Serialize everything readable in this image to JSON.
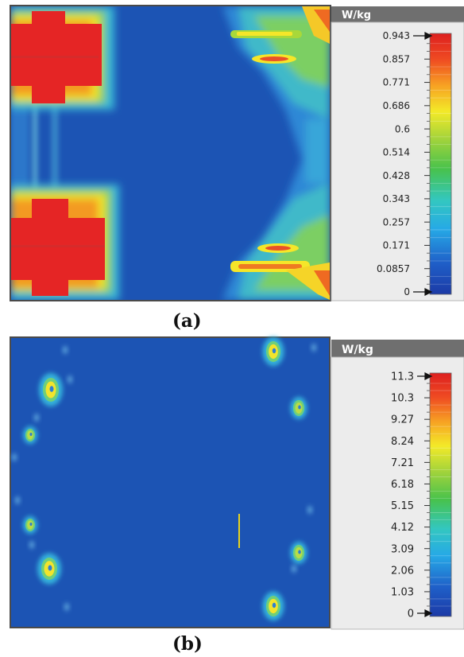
{
  "chart_data": [
    {
      "type": "heatmap",
      "caption": "(a)",
      "colorbar": {
        "unit": "W/kg",
        "ticks": [
          "0.943",
          "0.857",
          "0.771",
          "0.686",
          "0.6",
          "0.514",
          "0.428",
          "0.343",
          "0.257",
          "0.171",
          "0.0857",
          "0"
        ],
        "min": 0,
        "max": 0.943
      },
      "background": "#1c54b4",
      "hotspots": [
        {
          "region": "top-left",
          "shape": "cross",
          "level": 0.943
        },
        {
          "region": "bottom-left",
          "shape": "cross",
          "level": 0.943
        },
        {
          "region": "top-right",
          "shape": "bands",
          "level": 0.686
        },
        {
          "region": "bottom-right",
          "shape": "bands",
          "level": 0.771
        }
      ]
    },
    {
      "type": "heatmap",
      "caption": "(b)",
      "colorbar": {
        "unit": "W/kg",
        "ticks": [
          "11.3",
          "10.3",
          "9.27",
          "8.24",
          "7.21",
          "6.18",
          "5.15",
          "4.12",
          "3.09",
          "2.06",
          "1.03",
          "0"
        ],
        "min": 0,
        "max": 11.3
      },
      "background": "#1c54b4",
      "hotspots": [
        {
          "region": "upper-left",
          "shape": "spot",
          "level": 4.12
        },
        {
          "region": "left",
          "shape": "spot",
          "level": 2.06
        },
        {
          "region": "lower-left",
          "shape": "spot",
          "level": 2.06
        },
        {
          "region": "bottom-left",
          "shape": "spot",
          "level": 4.12
        },
        {
          "region": "top-right",
          "shape": "spot",
          "level": 4.12
        },
        {
          "region": "upper-right",
          "shape": "spot",
          "level": 3.09
        },
        {
          "region": "lower-right",
          "shape": "spot",
          "level": 3.09
        },
        {
          "region": "bottom-right",
          "shape": "spot",
          "level": 4.12
        }
      ]
    }
  ]
}
